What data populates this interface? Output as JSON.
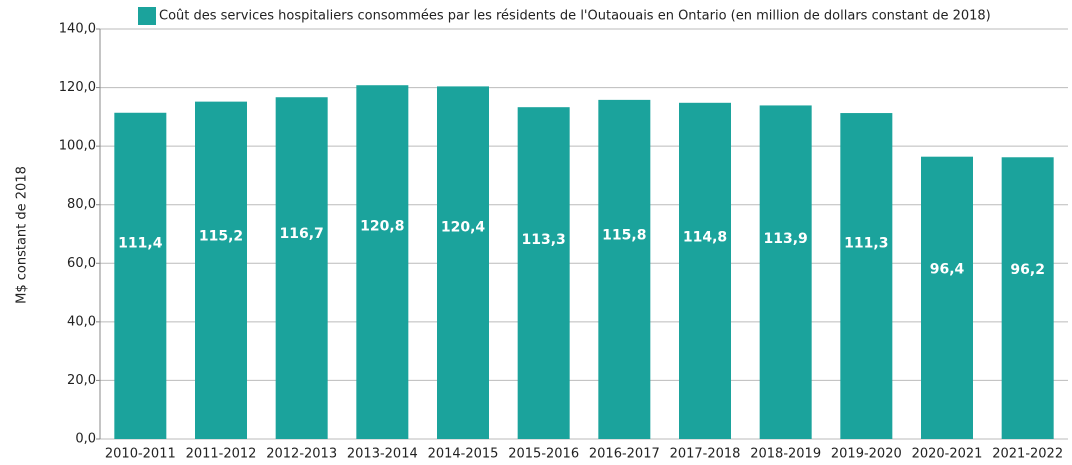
{
  "chart_data": {
    "type": "bar",
    "legend": "Coût des services hospitaliers consommées par les résidents de l'Outaouais en Ontario (en million de dollars constant de 2018)",
    "y_label": "M$ constant de 2018",
    "categories": [
      "2010-2011",
      "2011-2012",
      "2012-2013",
      "2013-2014",
      "2014-2015",
      "2015-2016",
      "2016-2017",
      "2017-2018",
      "2018-2019",
      "2019-2020",
      "2020-2021",
      "2021-2022"
    ],
    "series": [
      {
        "name": "Coût des services hospitaliers consommées par les résidents de l'Outaouais en Ontario (en million de dollars constant de 2018)",
        "color": "#1ba39c",
        "values": [
          111.4,
          115.2,
          116.7,
          120.8,
          120.4,
          113.3,
          115.8,
          114.8,
          113.9,
          111.3,
          96.4,
          96.2
        ],
        "value_labels": [
          "111,4",
          "115,2",
          "116,7",
          "120,8",
          "120,4",
          "113,3",
          "115,8",
          "114,8",
          "113,9",
          "111,3",
          "96,4",
          "96,2"
        ]
      }
    ],
    "ylim": [
      0,
      140
    ],
    "yticks": [
      {
        "value": 0,
        "label": "0,0"
      },
      {
        "value": 20,
        "label": "20,0"
      },
      {
        "value": 40,
        "label": "40,0"
      },
      {
        "value": 60,
        "label": "60,0"
      },
      {
        "value": 80,
        "label": "80,0"
      },
      {
        "value": 100,
        "label": "100,0"
      },
      {
        "value": 120,
        "label": "120,0"
      },
      {
        "value": 140,
        "label": "140,0"
      }
    ],
    "grid": true
  }
}
